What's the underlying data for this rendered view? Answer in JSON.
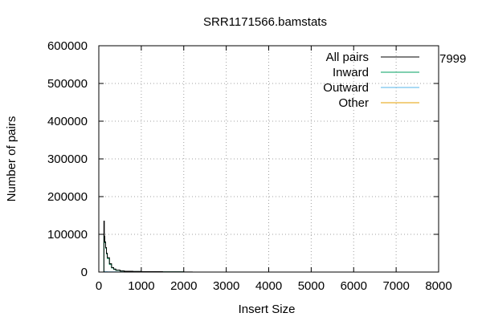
{
  "chart_data": {
    "type": "line",
    "title": "SRR1171566.bamstats",
    "xlabel": "Insert Size",
    "ylabel": "Number of pairs",
    "xlim": [
      0,
      8000
    ],
    "ylim": [
      0,
      600000
    ],
    "x_ticks": [
      0,
      1000,
      2000,
      3000,
      4000,
      5000,
      6000,
      7000,
      8000
    ],
    "y_ticks": [
      0,
      100000,
      200000,
      300000,
      400000,
      500000,
      600000
    ],
    "grid": true,
    "legend_position": "top-right",
    "stray_label": "7999",
    "series": [
      {
        "name": "All pairs",
        "color": "#000000",
        "x": [
          100,
          120,
          130,
          140,
          160,
          180,
          200,
          250,
          300,
          350,
          400,
          500,
          600,
          800,
          1000,
          1500,
          2000,
          2200
        ],
        "y": [
          0,
          135000,
          95000,
          80000,
          65000,
          50000,
          38000,
          22000,
          12000,
          8000,
          5000,
          3000,
          2000,
          1500,
          1000,
          500,
          300,
          100
        ]
      },
      {
        "name": "Inward",
        "color": "#00a060",
        "x": [
          100,
          120,
          130,
          140,
          160,
          180,
          200,
          250,
          300,
          350,
          400,
          500,
          600,
          800,
          1000,
          1500,
          2000
        ],
        "y": [
          0,
          95000,
          90000,
          78000,
          63000,
          48000,
          36000,
          20000,
          11000,
          7000,
          4500,
          2800,
          1800,
          1300,
          900,
          450,
          250
        ]
      },
      {
        "name": "Outward",
        "color": "#56b4e9",
        "x": [
          100,
          120,
          140,
          200,
          400,
          1000
        ],
        "y": [
          0,
          1000,
          800,
          500,
          200,
          50
        ]
      },
      {
        "name": "Other",
        "color": "#e69f00",
        "x": [
          100,
          200,
          400,
          1000
        ],
        "y": [
          0,
          100,
          50,
          10
        ]
      }
    ]
  }
}
